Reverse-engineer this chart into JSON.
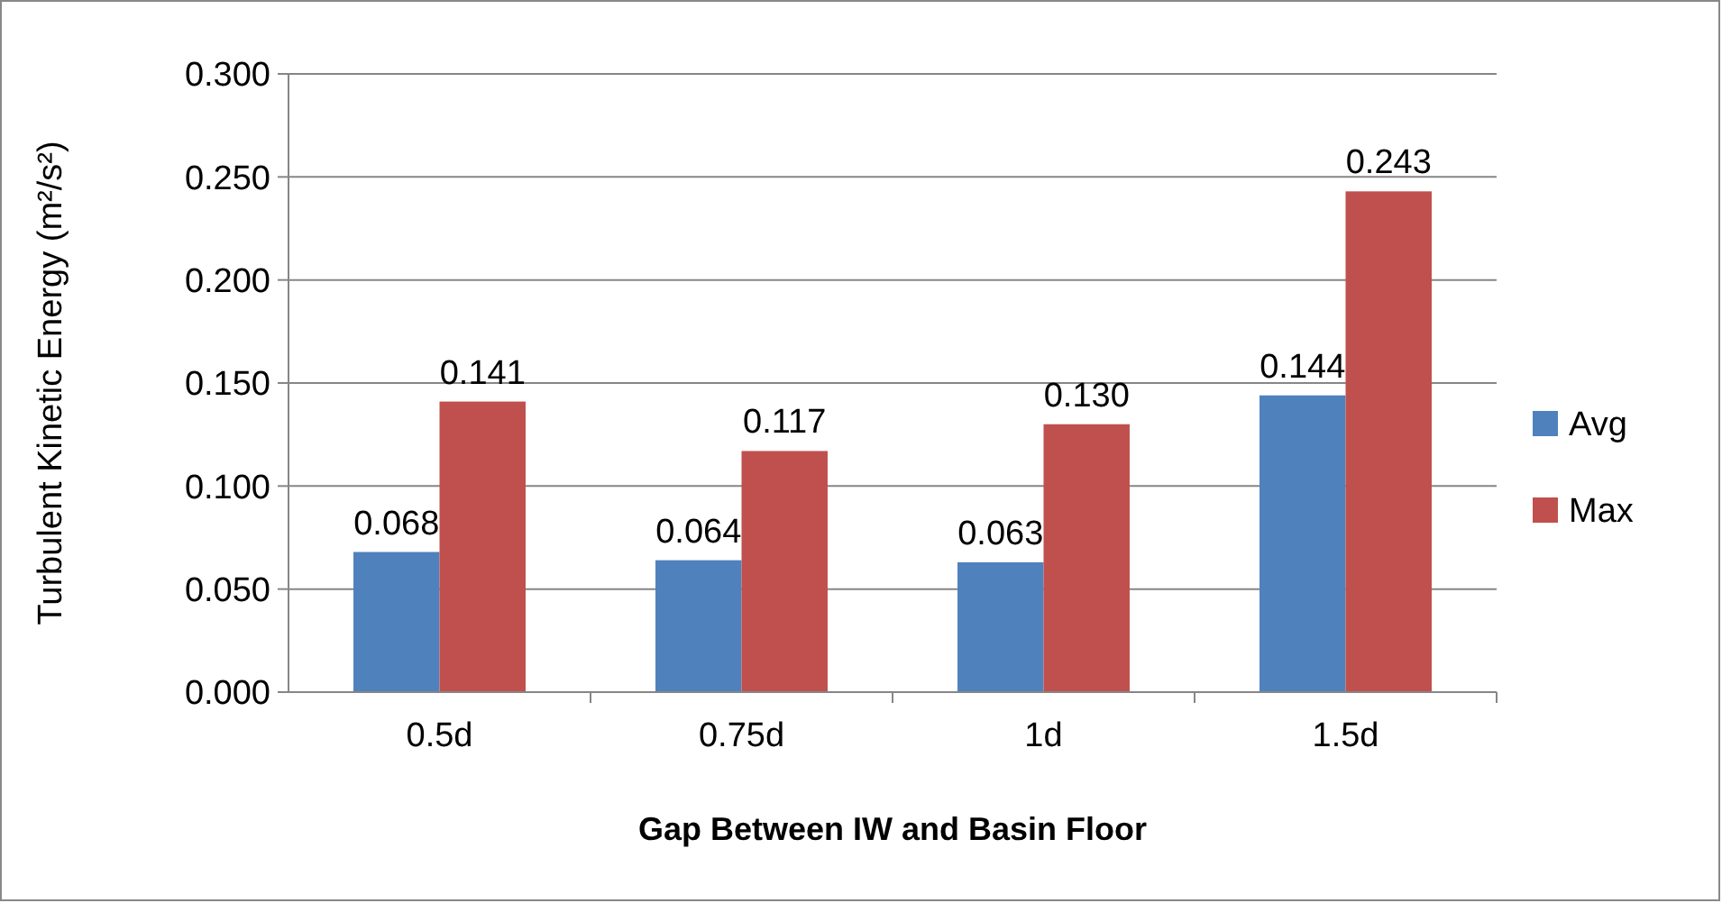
{
  "chart_data": {
    "type": "bar",
    "xlabel": "Gap Between IW and Basin Floor",
    "ylabel": "Turbulent Kinetic Energy (m²/s²)",
    "categories": [
      "0.5d",
      "0.75d",
      "1d",
      "1.5d"
    ],
    "series": [
      {
        "name": "Avg",
        "color": "#4f81bd",
        "values": [
          0.068,
          0.064,
          0.063,
          0.144
        ],
        "value_labels": [
          "0.068",
          "0.064",
          "0.063",
          "0.144"
        ]
      },
      {
        "name": "Max",
        "color": "#c0504d",
        "values": [
          0.141,
          0.117,
          0.13,
          0.243
        ],
        "value_labels": [
          "0.141",
          "0.117",
          "0.130",
          "0.243"
        ]
      }
    ],
    "ylim": [
      0,
      0.3
    ],
    "yticks": [
      {
        "value": 0,
        "label": "0.000"
      },
      {
        "value": 0.05,
        "label": "0.050"
      },
      {
        "value": 0.1,
        "label": "0.100"
      },
      {
        "value": 0.15,
        "label": "0.150"
      },
      {
        "value": 0.2,
        "label": "0.200"
      },
      {
        "value": 0.25,
        "label": "0.250"
      },
      {
        "value": 0.3,
        "label": "0.300"
      }
    ],
    "grid": "y",
    "legend": "right"
  }
}
